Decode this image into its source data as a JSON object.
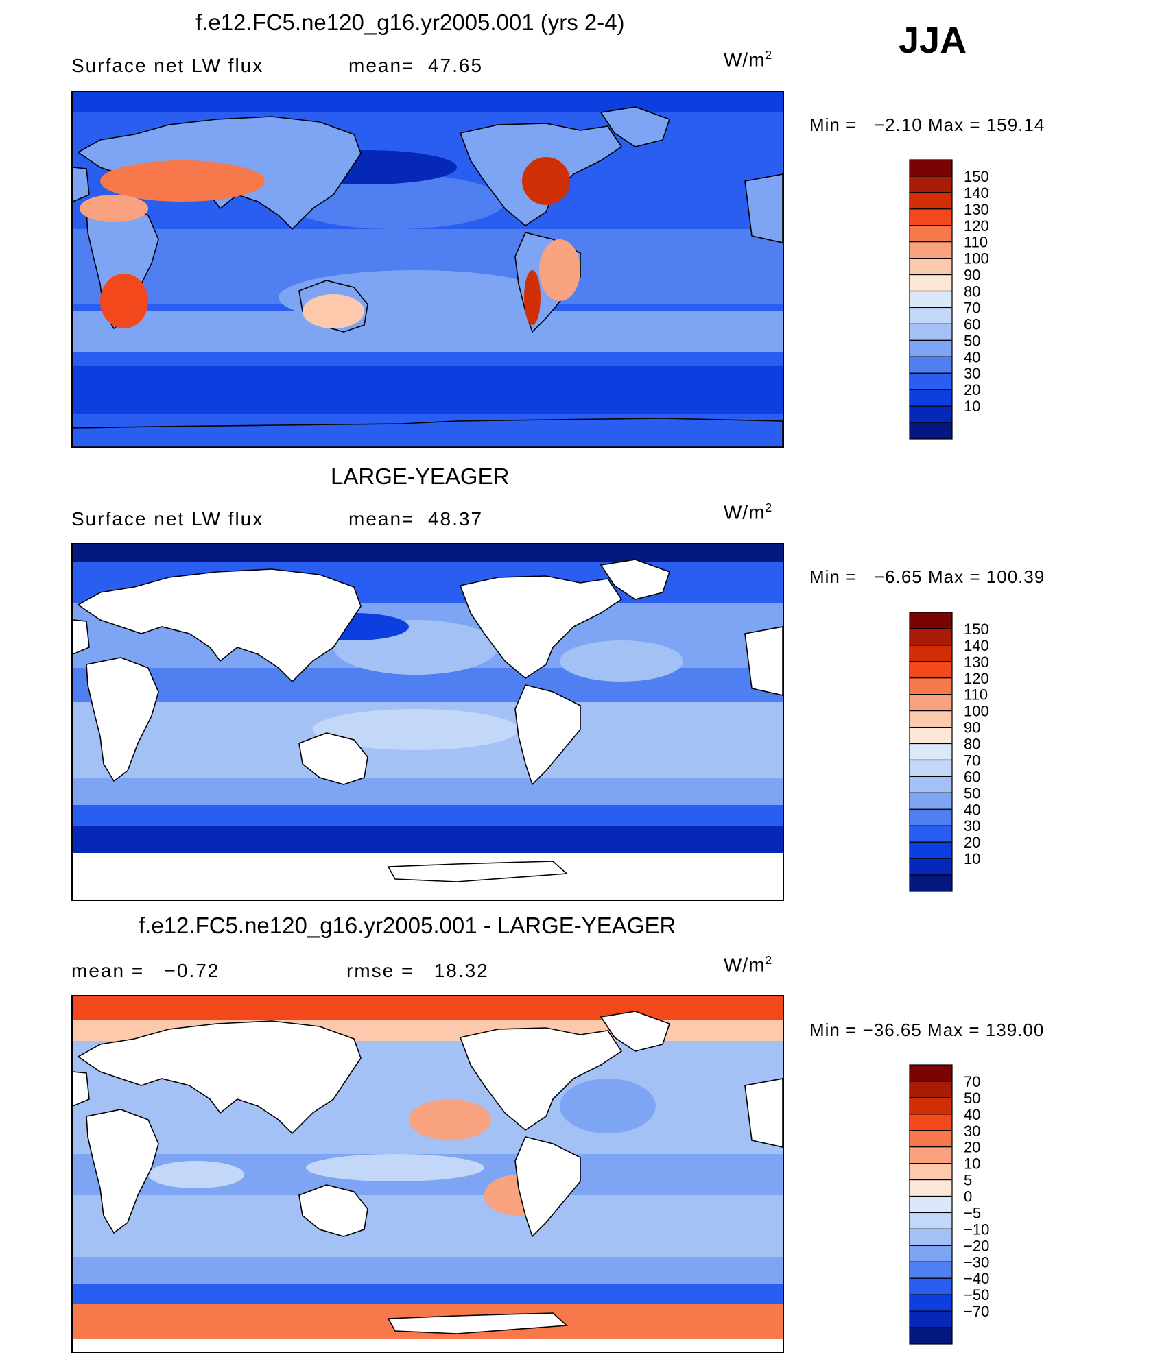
{
  "season": "JJA",
  "panels": [
    {
      "title": "f.e12.FC5.ne120_g16.yr2005.001 (yrs 2-4)",
      "left_label": "Surface net LW flux",
      "stat_label": "mean=",
      "stat_value": "47.65",
      "units_base": "W/m",
      "units_exp": "2",
      "min_label": "Min =",
      "min_value": "−2.10",
      "max_label": "Max =",
      "max_value": "159.14"
    },
    {
      "title": "LARGE-YEAGER",
      "left_label": "Surface net LW flux",
      "stat_label": "mean=",
      "stat_value": "48.37",
      "units_base": "W/m",
      "units_exp": "2",
      "min_label": "Min =",
      "min_value": "−6.65",
      "max_label": "Max =",
      "max_value": "100.39"
    },
    {
      "title": "f.e12.FC5.ne120_g16.yr2005.001 - LARGE-YEAGER",
      "left_label": "mean =",
      "left_value": "−0.72",
      "stat_label": "rmse =",
      "stat_value": "18.32",
      "units_base": "W/m",
      "units_exp": "2",
      "min_label": "Min =",
      "min_value": "−36.65",
      "max_label": "Max =",
      "max_value": "139.00"
    }
  ],
  "chart_data": [
    {
      "type": "heatmap",
      "title": "f.e12.FC5.ne120_g16.yr2005.001 (yrs 2-4)",
      "variable": "Surface net LW flux",
      "units": "W/m2",
      "mean": 47.65,
      "min": -2.1,
      "max": 159.14,
      "colorbar_levels": [
        "150",
        "140",
        "130",
        "120",
        "110",
        "100",
        "90",
        "80",
        "70",
        "60",
        "50",
        "40",
        "30",
        "20",
        "10"
      ],
      "colorbar_colors": [
        "#7a0403",
        "#a81c07",
        "#d02f05",
        "#f2481c",
        "#f7784a",
        "#f9a27f",
        "#fcc9ad",
        "#fde7d6",
        "#dbe8fa",
        "#c3d8f8",
        "#a4c1f6",
        "#7ea5f3",
        "#4f7ff0",
        "#2a5ef0",
        "#0d3ee0",
        "#0628b8",
        "#041880"
      ]
    },
    {
      "type": "heatmap",
      "title": "LARGE-YEAGER",
      "variable": "Surface net LW flux",
      "units": "W/m2",
      "mean": 48.37,
      "min": -6.65,
      "max": 100.39,
      "colorbar_levels": [
        "150",
        "140",
        "130",
        "120",
        "110",
        "100",
        "90",
        "80",
        "70",
        "60",
        "50",
        "40",
        "30",
        "20",
        "10"
      ],
      "colorbar_colors": [
        "#7a0403",
        "#a81c07",
        "#d02f05",
        "#f2481c",
        "#f7784a",
        "#f9a27f",
        "#fcc9ad",
        "#fde7d6",
        "#dbe8fa",
        "#c3d8f8",
        "#a4c1f6",
        "#7ea5f3",
        "#4f7ff0",
        "#2a5ef0",
        "#0d3ee0",
        "#0628b8",
        "#041880"
      ]
    },
    {
      "type": "heatmap",
      "title": "f.e12.FC5.ne120_g16.yr2005.001 - LARGE-YEAGER",
      "units": "W/m2",
      "mean": -0.72,
      "rmse": 18.32,
      "min": -36.65,
      "max": 139.0,
      "colorbar_levels": [
        "70",
        "50",
        "40",
        "30",
        "20",
        "10",
        "5",
        "0",
        "−5",
        "−10",
        "−20",
        "−30",
        "−40",
        "−50",
        "−70"
      ],
      "colorbar_colors": [
        "#7a0403",
        "#a81c07",
        "#d02f05",
        "#f2481c",
        "#f7784a",
        "#f9a27f",
        "#fcc9ad",
        "#fde7d6",
        "#dbe8fa",
        "#c3d8f8",
        "#a4c1f6",
        "#7ea5f3",
        "#4f7ff0",
        "#2a5ef0",
        "#0d3ee0",
        "#0628b8",
        "#041880"
      ]
    }
  ]
}
